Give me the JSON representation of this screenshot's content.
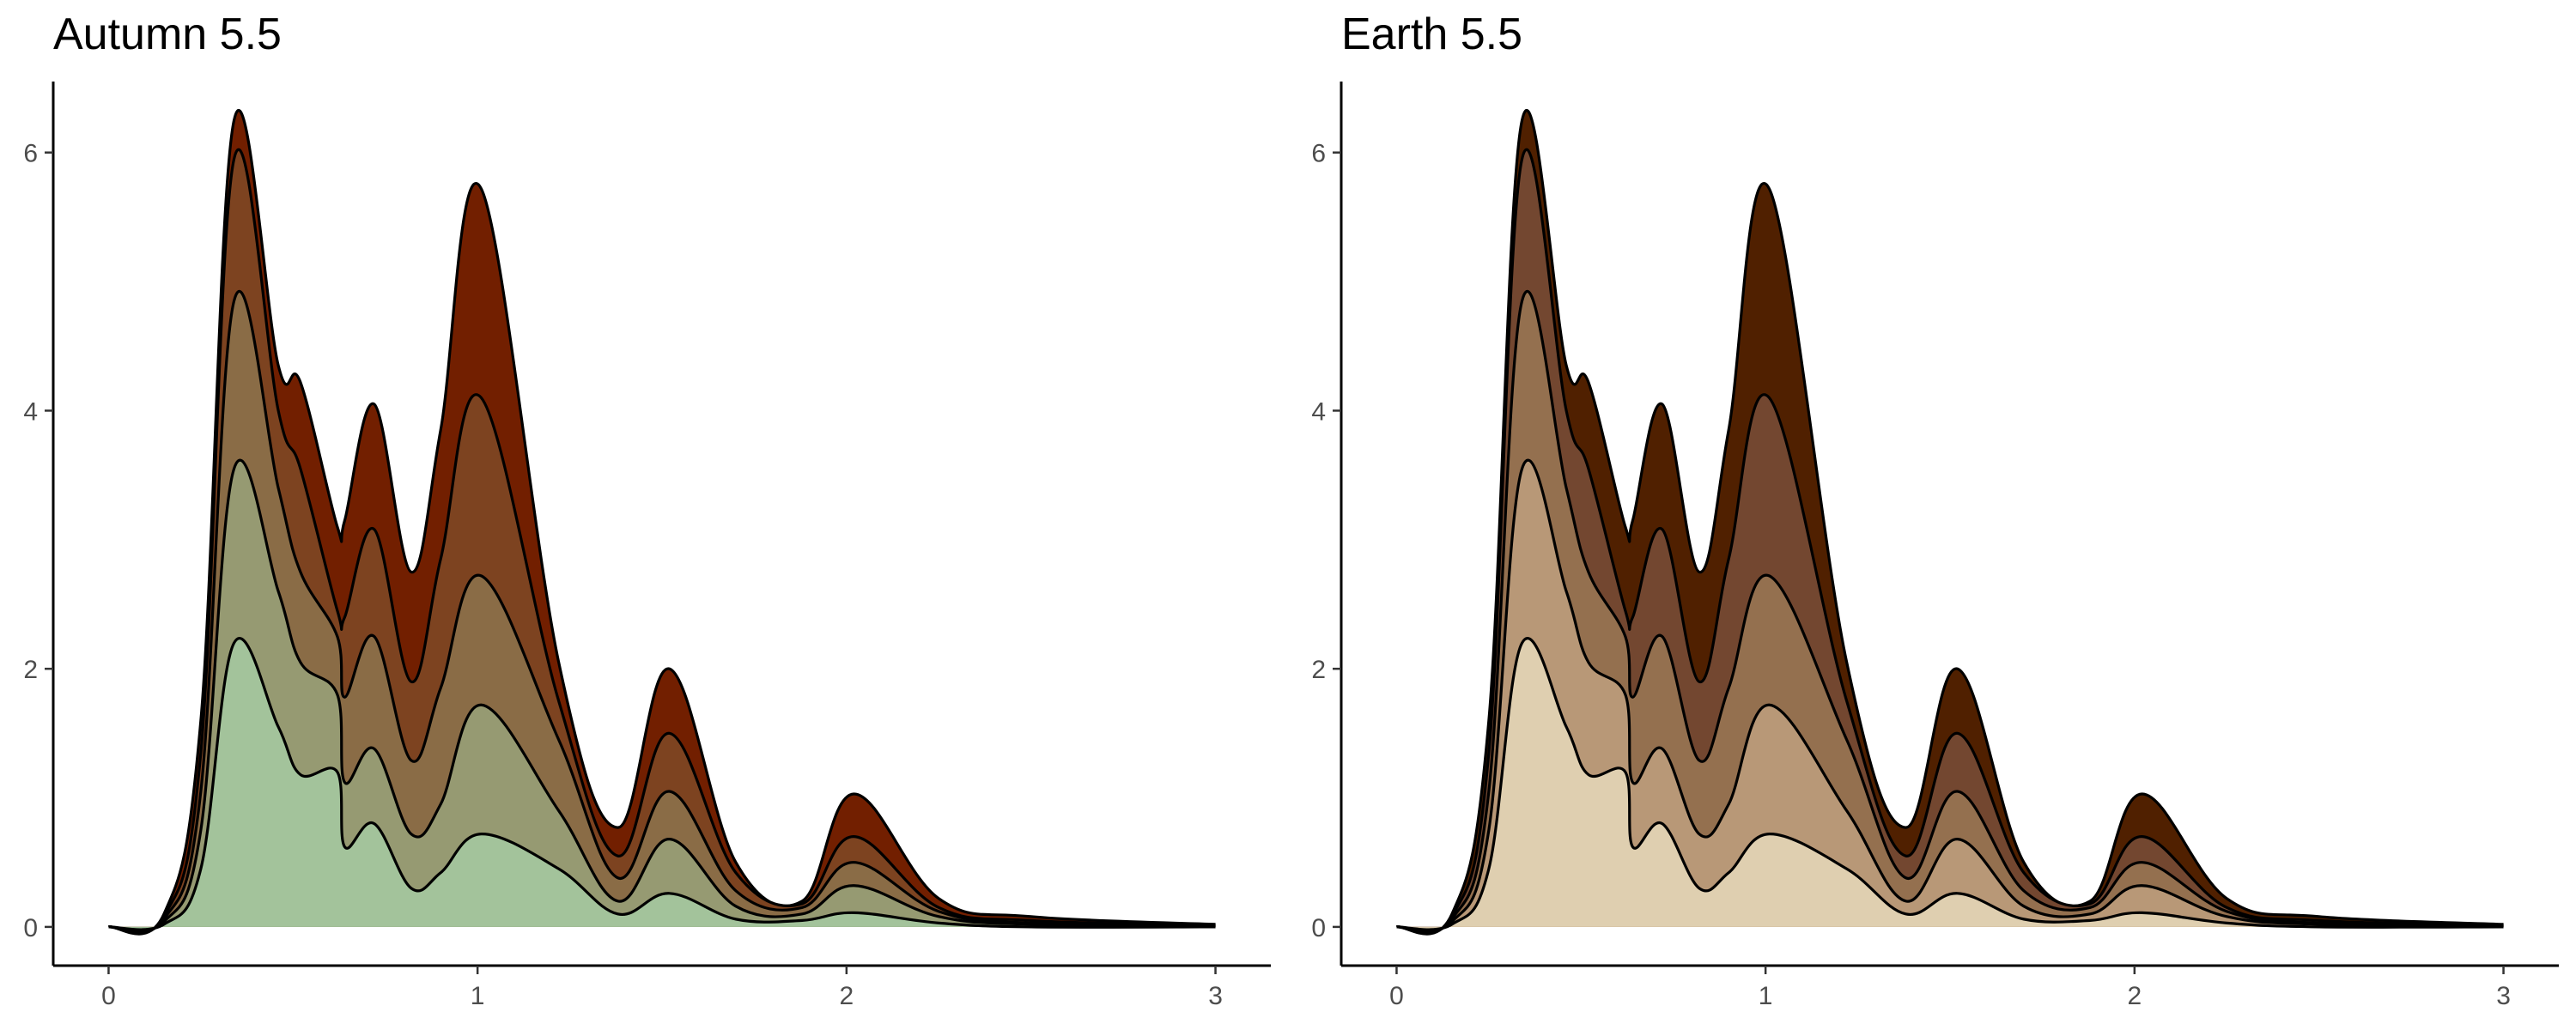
{
  "chart_data": [
    {
      "type": "area",
      "title": "Autumn 5.5",
      "xlabel": "",
      "ylabel": "",
      "xlim": [
        -0.15,
        3.15
      ],
      "ylim": [
        -0.3,
        6.55
      ],
      "x_ticks": [
        0,
        1,
        2,
        3
      ],
      "x_tick_labels": [
        "0",
        "1",
        "2",
        "3"
      ],
      "y_ticks": [
        0,
        2,
        4,
        6
      ],
      "y_tick_labels": [
        "0",
        "2",
        "4",
        "6"
      ],
      "grid": false,
      "legend": "none",
      "stacked": true,
      "fill_colors": [
        "#a3c39b",
        "#969a72",
        "#8a6c46",
        "#7d4320",
        "#721f00"
      ],
      "outline_color": "#000000",
      "series": [
        {
          "values": [
            0,
            0.02,
            0.45,
            2.2,
            1.55,
            1.18,
            1.2,
            0.62,
            0.8,
            0.3,
            0.42,
            0.72,
            0.45,
            0.1,
            0.26,
            0.06,
            0.05,
            0.11,
            0.03,
            0.0,
            0.0
          ]
        },
        {
          "values": [
            0,
            0.04,
            0.75,
            3.55,
            2.6,
            2.05,
            1.8,
            1.12,
            1.38,
            0.72,
            0.95,
            1.72,
            0.9,
            0.2,
            0.68,
            0.16,
            0.1,
            0.32,
            0.08,
            0.02,
            0.01
          ]
        },
        {
          "values": [
            0,
            0.06,
            1.05,
            4.85,
            3.4,
            2.75,
            2.25,
            1.78,
            2.25,
            1.29,
            1.85,
            2.72,
            1.45,
            0.38,
            1.05,
            0.28,
            0.15,
            0.5,
            0.12,
            0.03,
            0.01
          ]
        },
        {
          "values": [
            0,
            0.08,
            1.35,
            5.95,
            4.0,
            3.55,
            2.45,
            2.4,
            3.08,
            1.9,
            2.85,
            4.1,
            1.75,
            0.55,
            1.5,
            0.42,
            0.18,
            0.7,
            0.15,
            0.05,
            0.01
          ]
        },
        {
          "values": [
            0,
            0.1,
            1.6,
            6.25,
            4.35,
            4.22,
            3.1,
            3.15,
            4.05,
            2.75,
            3.85,
            5.72,
            2.05,
            0.77,
            2.0,
            0.5,
            0.2,
            1.03,
            0.22,
            0.08,
            0.02
          ]
        }
      ],
      "x": [
        0,
        0.15,
        0.25,
        0.34,
        0.46,
        0.52,
        0.62,
        0.64,
        0.72,
        0.82,
        0.9,
        1.01,
        1.22,
        1.38,
        1.52,
        1.7,
        1.88,
        2.02,
        2.25,
        2.5,
        3.0
      ]
    },
    {
      "type": "area",
      "title": "Earth 5.5",
      "xlabel": "",
      "ylabel": "",
      "xlim": [
        -0.15,
        3.15
      ],
      "ylim": [
        -0.3,
        6.55
      ],
      "x_ticks": [
        0,
        1,
        2,
        3
      ],
      "x_tick_labels": [
        "0",
        "1",
        "2",
        "3"
      ],
      "y_ticks": [
        0,
        2,
        4,
        6
      ],
      "y_tick_labels": [
        "0",
        "2",
        "4",
        "6"
      ],
      "grid": false,
      "legend": "none",
      "stacked": true,
      "fill_colors": [
        "#dfcfb0",
        "#b89877",
        "#94704f",
        "#734730",
        "#502000"
      ],
      "outline_color": "#000000",
      "series": [
        {
          "values": [
            0,
            0.02,
            0.45,
            2.2,
            1.55,
            1.18,
            1.2,
            0.62,
            0.8,
            0.3,
            0.42,
            0.72,
            0.45,
            0.1,
            0.26,
            0.06,
            0.05,
            0.11,
            0.03,
            0.0,
            0.0
          ]
        },
        {
          "values": [
            0,
            0.04,
            0.75,
            3.55,
            2.6,
            2.05,
            1.8,
            1.12,
            1.38,
            0.72,
            0.95,
            1.72,
            0.9,
            0.2,
            0.68,
            0.16,
            0.1,
            0.32,
            0.08,
            0.02,
            0.01
          ]
        },
        {
          "values": [
            0,
            0.06,
            1.05,
            4.85,
            3.4,
            2.75,
            2.25,
            1.78,
            2.25,
            1.29,
            1.85,
            2.72,
            1.45,
            0.38,
            1.05,
            0.28,
            0.15,
            0.5,
            0.12,
            0.03,
            0.01
          ]
        },
        {
          "values": [
            0,
            0.08,
            1.35,
            5.95,
            4.0,
            3.55,
            2.45,
            2.4,
            3.08,
            1.9,
            2.85,
            4.1,
            1.75,
            0.55,
            1.5,
            0.42,
            0.18,
            0.7,
            0.15,
            0.05,
            0.01
          ]
        },
        {
          "values": [
            0,
            0.1,
            1.6,
            6.25,
            4.35,
            4.22,
            3.1,
            3.15,
            4.05,
            2.75,
            3.85,
            5.72,
            2.05,
            0.77,
            2.0,
            0.5,
            0.2,
            1.03,
            0.22,
            0.08,
            0.02
          ]
        }
      ],
      "x": [
        0,
        0.15,
        0.25,
        0.34,
        0.46,
        0.52,
        0.62,
        0.64,
        0.72,
        0.82,
        0.9,
        1.01,
        1.22,
        1.38,
        1.52,
        1.7,
        1.88,
        2.02,
        2.25,
        2.5,
        3.0
      ]
    }
  ]
}
